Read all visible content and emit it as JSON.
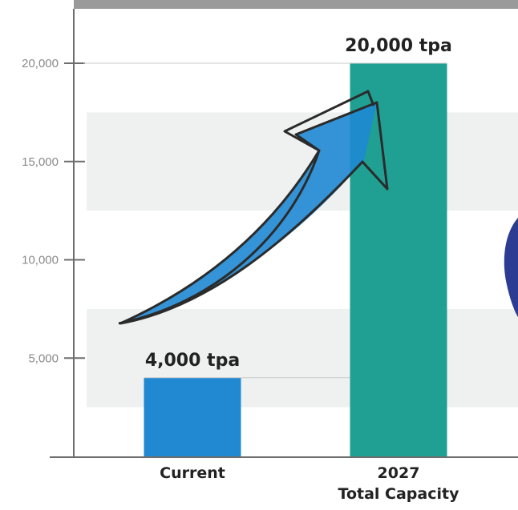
{
  "chart_data": {
    "type": "bar",
    "categories": [
      [
        "Current"
      ],
      [
        "2027",
        "Total Capacity"
      ]
    ],
    "values": [
      4000,
      20000
    ],
    "data_labels": [
      "4,000 tpa",
      "20,000 tpa"
    ],
    "bar_colors": [
      "#2089d2",
      "#1fa093"
    ],
    "y_ticks": [
      5000,
      10000,
      15000,
      20000
    ],
    "y_tick_labels": [
      "5,000",
      "10,000",
      "15,000",
      "20,000"
    ],
    "ylim": [
      0,
      20000
    ],
    "grid": "alternating horizontal bands",
    "title": "",
    "xlabel": "",
    "ylabel": ""
  },
  "decorations": {
    "growth_arrow": {
      "icon": "growth-arrow-icon",
      "color": "#1e88d3",
      "outline": "#2b2b2b"
    },
    "band_color": "#eff1f1",
    "header_color": "#9a9a9a",
    "badge_color": "#2b3c92"
  }
}
